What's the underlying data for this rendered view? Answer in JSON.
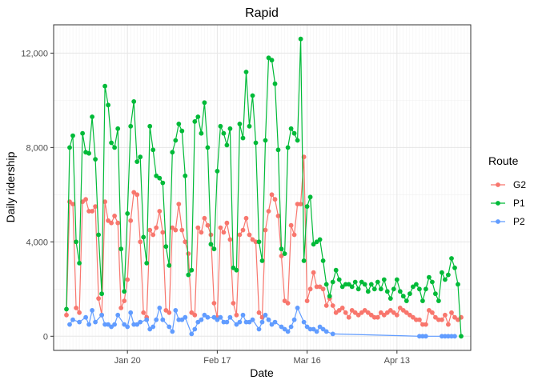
{
  "chart_data": {
    "type": "line",
    "title": "Rapid",
    "xlabel": "Date",
    "ylabel": "Daily ridership",
    "x_ticks": [
      {
        "date": "2020-01-20",
        "label": "Jan 20"
      },
      {
        "date": "2020-02-17",
        "label": "Feb 17"
      },
      {
        "date": "2020-03-16",
        "label": "Mar 16"
      },
      {
        "date": "2020-04-13",
        "label": "Apr 13"
      }
    ],
    "y_ticks": [
      {
        "value": 0,
        "label": "0"
      },
      {
        "value": 4000,
        "label": "4,000"
      },
      {
        "value": 8000,
        "label": "8,000"
      },
      {
        "value": 12000,
        "label": "12,000"
      }
    ],
    "xlim": [
      "2019-12-28",
      "2020-05-06"
    ],
    "ylim": [
      -600,
      13200
    ],
    "grid": true,
    "legend": {
      "title": "Route",
      "position": "right"
    },
    "series": [
      {
        "name": "G2",
        "color": "#F8766D",
        "x": [
          "2020-01-01",
          "2020-01-02",
          "2020-01-03",
          "2020-01-04",
          "2020-01-05",
          "2020-01-06",
          "2020-01-07",
          "2020-01-08",
          "2020-01-09",
          "2020-01-10",
          "2020-01-11",
          "2020-01-12",
          "2020-01-13",
          "2020-01-14",
          "2020-01-15",
          "2020-01-16",
          "2020-01-17",
          "2020-01-18",
          "2020-01-19",
          "2020-01-20",
          "2020-01-21",
          "2020-01-22",
          "2020-01-23",
          "2020-01-24",
          "2020-01-25",
          "2020-01-26",
          "2020-01-27",
          "2020-01-28",
          "2020-01-29",
          "2020-01-30",
          "2020-01-31",
          "2020-02-01",
          "2020-02-02",
          "2020-02-03",
          "2020-02-04",
          "2020-02-05",
          "2020-02-06",
          "2020-02-07",
          "2020-02-08",
          "2020-02-09",
          "2020-02-10",
          "2020-02-11",
          "2020-02-12",
          "2020-02-13",
          "2020-02-14",
          "2020-02-15",
          "2020-02-16",
          "2020-02-17",
          "2020-02-18",
          "2020-02-19",
          "2020-02-20",
          "2020-02-21",
          "2020-02-22",
          "2020-02-23",
          "2020-02-24",
          "2020-02-25",
          "2020-02-26",
          "2020-02-27",
          "2020-02-28",
          "2020-02-29",
          "2020-03-01",
          "2020-03-02",
          "2020-03-03",
          "2020-03-04",
          "2020-03-05",
          "2020-03-06",
          "2020-03-07",
          "2020-03-08",
          "2020-03-09",
          "2020-03-10",
          "2020-03-11",
          "2020-03-12",
          "2020-03-13",
          "2020-03-14",
          "2020-03-15",
          "2020-03-16",
          "2020-03-17",
          "2020-03-18",
          "2020-03-19",
          "2020-03-20",
          "2020-03-21",
          "2020-03-22",
          "2020-03-23",
          "2020-03-24",
          "2020-03-25",
          "2020-03-26",
          "2020-03-27",
          "2020-03-28",
          "2020-03-29",
          "2020-03-30",
          "2020-03-31",
          "2020-04-01",
          "2020-04-02",
          "2020-04-03",
          "2020-04-04",
          "2020-04-05",
          "2020-04-06",
          "2020-04-07",
          "2020-04-08",
          "2020-04-09",
          "2020-04-10",
          "2020-04-11",
          "2020-04-12",
          "2020-04-13",
          "2020-04-14",
          "2020-04-15",
          "2020-04-16",
          "2020-04-17",
          "2020-04-18",
          "2020-04-19",
          "2020-04-20",
          "2020-04-21",
          "2020-04-22",
          "2020-04-23",
          "2020-04-24",
          "2020-04-25",
          "2020-04-26",
          "2020-04-27",
          "2020-04-28",
          "2020-04-29",
          "2020-04-30",
          "2020-05-01",
          "2020-05-02",
          "2020-05-03"
        ],
        "y": [
          900,
          5700,
          5600,
          1200,
          1000,
          5700,
          5800,
          5300,
          5300,
          5500,
          1600,
          900,
          5700,
          4900,
          4800,
          5100,
          4800,
          1200,
          1500,
          2400,
          4900,
          6100,
          6000,
          4000,
          1000,
          800,
          4500,
          4300,
          4600,
          5300,
          4400,
          1100,
          1000,
          4600,
          4500,
          5600,
          4500,
          4000,
          3500,
          1000,
          900,
          4600,
          4400,
          5000,
          4700,
          4300,
          1400,
          800,
          4600,
          4400,
          4800,
          4100,
          1400,
          900,
          4300,
          4500,
          5000,
          4300,
          4100,
          4000,
          1000,
          800,
          4500,
          5300,
          6000,
          5800,
          5100,
          3400,
          1500,
          1400,
          4700,
          4300,
          5600,
          5600,
          7600,
          1500,
          2000,
          2700,
          2100,
          2100,
          2000,
          1300,
          1600,
          1300,
          1000,
          1100,
          1200,
          1000,
          800,
          1100,
          1000,
          900,
          1000,
          1100,
          1000,
          900,
          800,
          800,
          1000,
          900,
          1000,
          1100,
          1000,
          900,
          1200,
          1100,
          1000,
          900,
          800,
          700,
          700,
          500,
          500,
          1100,
          1000,
          800,
          700,
          700,
          900,
          500,
          1000,
          800,
          700,
          800
        ]
      },
      {
        "name": "P1",
        "color": "#00BA38",
        "x": [
          "2020-01-01",
          "2020-01-02",
          "2020-01-03",
          "2020-01-04",
          "2020-01-05",
          "2020-01-06",
          "2020-01-07",
          "2020-01-08",
          "2020-01-09",
          "2020-01-10",
          "2020-01-11",
          "2020-01-12",
          "2020-01-13",
          "2020-01-14",
          "2020-01-15",
          "2020-01-16",
          "2020-01-17",
          "2020-01-18",
          "2020-01-19",
          "2020-01-20",
          "2020-01-21",
          "2020-01-22",
          "2020-01-23",
          "2020-01-24",
          "2020-01-25",
          "2020-01-26",
          "2020-01-27",
          "2020-01-28",
          "2020-01-29",
          "2020-01-30",
          "2020-01-31",
          "2020-02-01",
          "2020-02-02",
          "2020-02-03",
          "2020-02-04",
          "2020-02-05",
          "2020-02-06",
          "2020-02-07",
          "2020-02-08",
          "2020-02-09",
          "2020-02-10",
          "2020-02-11",
          "2020-02-12",
          "2020-02-13",
          "2020-02-14",
          "2020-02-15",
          "2020-02-16",
          "2020-02-17",
          "2020-02-18",
          "2020-02-19",
          "2020-02-20",
          "2020-02-21",
          "2020-02-22",
          "2020-02-23",
          "2020-02-24",
          "2020-02-25",
          "2020-02-26",
          "2020-02-27",
          "2020-02-28",
          "2020-02-29",
          "2020-03-01",
          "2020-03-02",
          "2020-03-03",
          "2020-03-04",
          "2020-03-05",
          "2020-03-06",
          "2020-03-07",
          "2020-03-08",
          "2020-03-09",
          "2020-03-10",
          "2020-03-11",
          "2020-03-12",
          "2020-03-13",
          "2020-03-14",
          "2020-03-15",
          "2020-03-16",
          "2020-03-17",
          "2020-03-18",
          "2020-03-19",
          "2020-03-20",
          "2020-03-21",
          "2020-03-22",
          "2020-03-23",
          "2020-03-24",
          "2020-03-25",
          "2020-03-26",
          "2020-03-27",
          "2020-03-28",
          "2020-03-29",
          "2020-03-30",
          "2020-03-31",
          "2020-04-01",
          "2020-04-02",
          "2020-04-03",
          "2020-04-04",
          "2020-04-05",
          "2020-04-06",
          "2020-04-07",
          "2020-04-08",
          "2020-04-09",
          "2020-04-10",
          "2020-04-11",
          "2020-04-12",
          "2020-04-13",
          "2020-04-14",
          "2020-04-15",
          "2020-04-16",
          "2020-04-17",
          "2020-04-18",
          "2020-04-19",
          "2020-04-20",
          "2020-04-21",
          "2020-04-22",
          "2020-04-23",
          "2020-04-24",
          "2020-04-25",
          "2020-04-26",
          "2020-04-27",
          "2020-04-28",
          "2020-04-29",
          "2020-04-30",
          "2020-05-01",
          "2020-05-02",
          "2020-05-03"
        ],
        "y": [
          1150,
          8000,
          8500,
          4000,
          3100,
          8600,
          7800,
          7750,
          9300,
          7500,
          4300,
          1800,
          10600,
          9800,
          8200,
          8000,
          8800,
          3700,
          1900,
          5200,
          8900,
          9950,
          7400,
          7600,
          4200,
          3100,
          8900,
          7900,
          6800,
          6700,
          6500,
          3800,
          3000,
          7800,
          8300,
          9000,
          8700,
          6800,
          2600,
          2800,
          9100,
          9300,
          8600,
          9900,
          8000,
          3900,
          3700,
          7000,
          8900,
          8600,
          8100,
          8800,
          2900,
          2800,
          9000,
          8400,
          11200,
          8900,
          10200,
          8200,
          4000,
          3200,
          8300,
          11800,
          11700,
          10700,
          7900,
          3700,
          3500,
          8000,
          8800,
          8600,
          8300,
          12600,
          3200,
          5500,
          5900,
          3900,
          4000,
          4100,
          3200,
          2200,
          1700,
          2300,
          2800,
          2400,
          2100,
          2200,
          2200,
          2100,
          2300,
          2000,
          2300,
          2200,
          1900,
          2200,
          2000,
          2300,
          2000,
          2400,
          1900,
          1600,
          2000,
          2400,
          1900,
          1700,
          1500,
          1800,
          2100,
          2200,
          2000,
          1500,
          2000,
          2500,
          2300,
          1800,
          1500,
          2700,
          2400,
          2600,
          3300,
          2900,
          2200,
          0
        ]
      },
      {
        "name": "P2",
        "color": "#619CFF",
        "x": [
          "2020-01-02",
          "2020-01-03",
          "2020-01-05",
          "2020-01-07",
          "2020-01-08",
          "2020-01-09",
          "2020-01-10",
          "2020-01-12",
          "2020-01-13",
          "2020-01-14",
          "2020-01-15",
          "2020-01-16",
          "2020-01-17",
          "2020-01-19",
          "2020-01-20",
          "2020-01-21",
          "2020-01-22",
          "2020-01-23",
          "2020-01-24",
          "2020-01-26",
          "2020-01-27",
          "2020-01-28",
          "2020-01-29",
          "2020-01-30",
          "2020-01-31",
          "2020-02-02",
          "2020-02-03",
          "2020-02-04",
          "2020-02-05",
          "2020-02-06",
          "2020-02-07",
          "2020-02-09",
          "2020-02-10",
          "2020-02-11",
          "2020-02-12",
          "2020-02-13",
          "2020-02-14",
          "2020-02-16",
          "2020-02-17",
          "2020-02-18",
          "2020-02-19",
          "2020-02-20",
          "2020-02-21",
          "2020-02-23",
          "2020-02-24",
          "2020-02-25",
          "2020-02-26",
          "2020-02-27",
          "2020-02-28",
          "2020-03-01",
          "2020-03-02",
          "2020-03-03",
          "2020-03-04",
          "2020-03-05",
          "2020-03-06",
          "2020-03-08",
          "2020-03-09",
          "2020-03-10",
          "2020-03-11",
          "2020-03-12",
          "2020-03-13",
          "2020-03-15",
          "2020-03-16",
          "2020-03-17",
          "2020-03-18",
          "2020-03-19",
          "2020-03-20",
          "2020-03-21",
          "2020-03-22",
          "2020-03-24",
          "2020-04-20",
          "2020-04-21",
          "2020-04-22",
          "2020-04-27",
          "2020-04-28",
          "2020-04-29",
          "2020-04-30",
          "2020-05-01"
        ],
        "y": [
          500,
          700,
          600,
          800,
          500,
          1100,
          600,
          900,
          500,
          500,
          400,
          500,
          900,
          500,
          400,
          1000,
          500,
          500,
          600,
          700,
          300,
          400,
          700,
          1200,
          700,
          400,
          200,
          1100,
          700,
          700,
          800,
          100,
          300,
          600,
          700,
          900,
          800,
          800,
          700,
          800,
          600,
          600,
          800,
          500,
          600,
          900,
          600,
          600,
          700,
          300,
          600,
          900,
          700,
          500,
          600,
          400,
          300,
          200,
          400,
          700,
          1200,
          600,
          400,
          300,
          300,
          200,
          400,
          300,
          200,
          100,
          0,
          0,
          0,
          0,
          0,
          0,
          0,
          0
        ]
      }
    ]
  }
}
